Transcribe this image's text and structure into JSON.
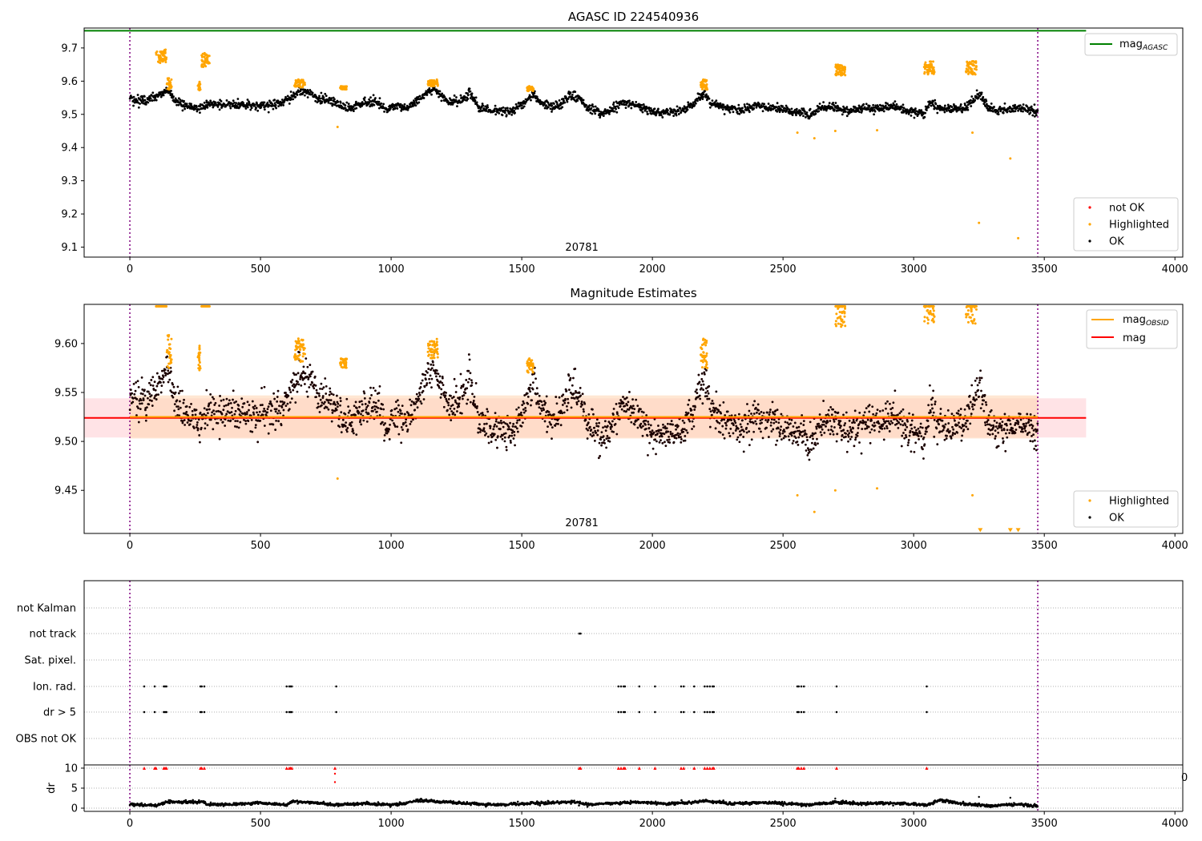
{
  "chart_data": [
    {
      "type": "scatter",
      "title": "AGASC ID 224540936",
      "xlabel": "",
      "ylabel": "",
      "xlim": [
        -175,
        4030
      ],
      "ylim": [
        9.07,
        9.76
      ],
      "xticks": [
        "0",
        "500",
        "1000",
        "1500",
        "2000",
        "2500",
        "3000",
        "3500",
        "4000"
      ],
      "yticks": [
        "9.1",
        "9.2",
        "9.3",
        "9.4",
        "9.5",
        "9.6",
        "9.7"
      ],
      "obsid_label": "20781",
      "obsid_label_x": 1730,
      "obs_boundaries": [
        0,
        3475
      ],
      "reference_lines": [
        {
          "name": "mag",
          "name_sub": "AGASC",
          "value": 9.752,
          "x_end": 3660,
          "color": "#008000"
        }
      ],
      "legend_lines": [
        {
          "name": "mag",
          "sub": "AGASC",
          "color": "#008000"
        }
      ],
      "legend_points": [
        {
          "name": "not OK",
          "color": "#ff0000"
        },
        {
          "name": "Highlighted",
          "color": "#ffa500"
        },
        {
          "name": "OK",
          "color": "#000000"
        }
      ],
      "ok_trend": [
        [
          0,
          9.548
        ],
        [
          60,
          9.54
        ],
        [
          120,
          9.56
        ],
        [
          150,
          9.572
        ],
        [
          170,
          9.545
        ],
        [
          200,
          9.53
        ],
        [
          260,
          9.518
        ],
        [
          300,
          9.53
        ],
        [
          350,
          9.53
        ],
        [
          420,
          9.528
        ],
        [
          500,
          9.525
        ],
        [
          560,
          9.53
        ],
        [
          610,
          9.545
        ],
        [
          650,
          9.575
        ],
        [
          690,
          9.56
        ],
        [
          720,
          9.548
        ],
        [
          780,
          9.54
        ],
        [
          820,
          9.52
        ],
        [
          860,
          9.52
        ],
        [
          900,
          9.535
        ],
        [
          940,
          9.54
        ],
        [
          980,
          9.52
        ],
        [
          1020,
          9.525
        ],
        [
          1060,
          9.52
        ],
        [
          1100,
          9.54
        ],
        [
          1130,
          9.56
        ],
        [
          1160,
          9.58
        ],
        [
          1190,
          9.55
        ],
        [
          1230,
          9.535
        ],
        [
          1270,
          9.545
        ],
        [
          1300,
          9.565
        ],
        [
          1340,
          9.52
        ],
        [
          1400,
          9.51
        ],
        [
          1460,
          9.51
        ],
        [
          1520,
          9.54
        ],
        [
          1545,
          9.56
        ],
        [
          1580,
          9.53
        ],
        [
          1640,
          9.525
        ],
        [
          1680,
          9.555
        ],
        [
          1720,
          9.55
        ],
        [
          1760,
          9.515
        ],
        [
          1800,
          9.505
        ],
        [
          1840,
          9.51
        ],
        [
          1880,
          9.535
        ],
        [
          1940,
          9.53
        ],
        [
          2000,
          9.51
        ],
        [
          2060,
          9.505
        ],
        [
          2120,
          9.515
        ],
        [
          2160,
          9.535
        ],
        [
          2200,
          9.565
        ],
        [
          2220,
          9.535
        ],
        [
          2280,
          9.52
        ],
        [
          2340,
          9.515
        ],
        [
          2400,
          9.525
        ],
        [
          2440,
          9.52
        ],
        [
          2500,
          9.515
        ],
        [
          2560,
          9.505
        ],
        [
          2600,
          9.5
        ],
        [
          2640,
          9.515
        ],
        [
          2680,
          9.525
        ],
        [
          2720,
          9.515
        ],
        [
          2760,
          9.508
        ],
        [
          2800,
          9.52
        ],
        [
          2860,
          9.515
        ],
        [
          2920,
          9.525
        ],
        [
          2980,
          9.51
        ],
        [
          3040,
          9.505
        ],
        [
          3060,
          9.535
        ],
        [
          3100,
          9.52
        ],
        [
          3160,
          9.515
        ],
        [
          3200,
          9.52
        ],
        [
          3230,
          9.545
        ],
        [
          3255,
          9.56
        ],
        [
          3280,
          9.525
        ],
        [
          3320,
          9.51
        ],
        [
          3360,
          9.515
        ],
        [
          3420,
          9.52
        ],
        [
          3475,
          9.505
        ]
      ],
      "ok_scatter": 0.011,
      "highlighted_clusters": [
        {
          "x": [
            100,
            140
          ],
          "y": [
            9.655,
            9.695
          ]
        },
        {
          "x": [
            140,
            160
          ],
          "y": [
            9.575,
            9.61
          ]
        },
        {
          "x": [
            260,
            270
          ],
          "y": [
            9.57,
            9.6
          ]
        },
        {
          "x": [
            275,
            305
          ],
          "y": [
            9.64,
            9.685
          ]
        },
        {
          "x": [
            630,
            670
          ],
          "y": [
            9.58,
            9.605
          ]
        },
        {
          "x": [
            805,
            830
          ],
          "y": [
            9.575,
            9.585
          ]
        },
        {
          "x": [
            1140,
            1180
          ],
          "y": [
            9.585,
            9.605
          ]
        },
        {
          "x": [
            1520,
            1545
          ],
          "y": [
            9.57,
            9.585
          ]
        },
        {
          "x": [
            2185,
            2210
          ],
          "y": [
            9.575,
            9.605
          ]
        },
        {
          "x": [
            2700,
            2740
          ],
          "y": [
            9.615,
            9.65
          ]
        },
        {
          "x": [
            3040,
            3080
          ],
          "y": [
            9.62,
            9.66
          ]
        },
        {
          "x": [
            3200,
            3240
          ],
          "y": [
            9.62,
            9.66
          ]
        }
      ],
      "highlighted_outliers": [
        [
          795,
          9.462
        ],
        [
          2555,
          9.445
        ],
        [
          2620,
          9.428
        ],
        [
          2700,
          9.45
        ],
        [
          2860,
          9.452
        ],
        [
          3225,
          9.445
        ],
        [
          3250,
          9.173
        ],
        [
          3370,
          9.367
        ],
        [
          3400,
          9.127
        ]
      ]
    },
    {
      "type": "scatter",
      "title": "Magnitude Estimates",
      "xlabel": "",
      "ylabel": "",
      "xlim": [
        -175,
        4030
      ],
      "ylim": [
        9.406,
        9.64
      ],
      "xticks": [
        "0",
        "500",
        "1000",
        "1500",
        "2000",
        "2500",
        "3000",
        "3500",
        "4000"
      ],
      "yticks": [
        "9.45",
        "9.50",
        "9.55",
        "9.60"
      ],
      "obsid_label": "20781",
      "obsid_label_x": 1730,
      "obs_boundaries": [
        0,
        3475
      ],
      "reference_lines": [
        {
          "name": "mag",
          "name_sub": "OBSID",
          "value": 9.525,
          "band": [
            9.503,
            9.547
          ],
          "x_start": 0,
          "x_end": 3475,
          "color": "#ffa500",
          "band_color": "#ffd7b5"
        },
        {
          "name": "mag",
          "value": 9.524,
          "band": [
            9.504,
            9.544
          ],
          "x_start": -175,
          "x_end": 3660,
          "color": "#ff0000",
          "band_color": "#ffc0c8"
        }
      ],
      "legend_lines": [
        {
          "name": "mag",
          "sub": "OBSID",
          "color": "#ffa500"
        },
        {
          "name": "mag",
          "sub": "",
          "color": "#ff0000"
        }
      ],
      "legend_points": [
        {
          "name": "Highlighted",
          "color": "#ffa500"
        },
        {
          "name": "OK",
          "color": "#000000"
        }
      ],
      "ok_scatter": 0.012,
      "clipped_markers": [
        [
          3255,
          9.409
        ],
        [
          3370,
          9.409
        ],
        [
          3400,
          9.409
        ]
      ]
    },
    {
      "type": "scatter",
      "title": "",
      "xlabel": "",
      "ylabel": "",
      "flag_labels": [
        "not Kalman",
        "not track",
        "Sat. pixel.",
        "Ion. rad.",
        "dr > 5",
        "OBS not OK"
      ],
      "flag_events": {
        "not track": [
          1720,
          1725
        ],
        "Ion. rad.": [
          55,
          95,
          130,
          135,
          140,
          270,
          275,
          285,
          600,
          610,
          615,
          620,
          790,
          1870,
          1880,
          1890,
          1895,
          1950,
          2010,
          2110,
          2120,
          2160,
          2200,
          2210,
          2220,
          2230,
          2235,
          2555,
          2560,
          2570,
          2580,
          2705,
          3050
        ],
        "dr > 5": [
          55,
          95,
          130,
          135,
          140,
          270,
          275,
          285,
          600,
          610,
          615,
          620,
          790,
          1870,
          1880,
          1890,
          1895,
          1950,
          2010,
          2110,
          2120,
          2160,
          2200,
          2210,
          2220,
          2230,
          2235,
          2555,
          2560,
          2570,
          2580,
          2705,
          3050
        ]
      },
      "dr": {
        "label": "dr",
        "yticks": [
          "0",
          "5",
          "10"
        ],
        "ylim": [
          -0.8,
          10.8
        ],
        "xticks": [
          "0",
          "500",
          "1000",
          "1500",
          "2000",
          "2500",
          "3000",
          "3500",
          "4000"
        ],
        "xlim": [
          -175,
          4030
        ],
        "edge_label": "0",
        "clipped_at_10": [
          55,
          95,
          100,
          130,
          135,
          140,
          270,
          275,
          285,
          600,
          610,
          615,
          620,
          785,
          1720,
          1725,
          1870,
          1880,
          1890,
          1895,
          1950,
          2010,
          2110,
          2120,
          2160,
          2200,
          2210,
          2220,
          2230,
          2235,
          2555,
          2560,
          2570,
          2580,
          2705,
          3050
        ],
        "outliers": [
          [
            785,
            8.6
          ],
          [
            785,
            6.5
          ],
          [
            2700,
            2.4
          ],
          [
            3250,
            2.8
          ],
          [
            3370,
            2.6
          ]
        ],
        "trend": [
          [
            0,
            0.9
          ],
          [
            100,
            0.7
          ],
          [
            140,
            1.5
          ],
          [
            280,
            1.6
          ],
          [
            300,
            0.9
          ],
          [
            400,
            1.0
          ],
          [
            500,
            1.3
          ],
          [
            600,
            0.8
          ],
          [
            620,
            1.7
          ],
          [
            700,
            1.4
          ],
          [
            780,
            0.8
          ],
          [
            900,
            1.2
          ],
          [
            1000,
            0.8
          ],
          [
            1060,
            1.3
          ],
          [
            1100,
            1.9
          ],
          [
            1200,
            1.6
          ],
          [
            1300,
            1.2
          ],
          [
            1400,
            0.8
          ],
          [
            1500,
            1.1
          ],
          [
            1600,
            1.3
          ],
          [
            1700,
            1.6
          ],
          [
            1750,
            0.9
          ],
          [
            1850,
            1.2
          ],
          [
            1950,
            1.5
          ],
          [
            2050,
            1.1
          ],
          [
            2150,
            1.4
          ],
          [
            2200,
            1.8
          ],
          [
            2300,
            1.1
          ],
          [
            2400,
            1.4
          ],
          [
            2500,
            1.2
          ],
          [
            2600,
            0.8
          ],
          [
            2700,
            1.5
          ],
          [
            2800,
            1.1
          ],
          [
            2900,
            1.3
          ],
          [
            3000,
            1.0
          ],
          [
            3050,
            0.7
          ],
          [
            3100,
            2.0
          ],
          [
            3200,
            1.0
          ],
          [
            3300,
            0.6
          ],
          [
            3400,
            0.9
          ],
          [
            3475,
            0.5
          ]
        ]
      }
    }
  ]
}
